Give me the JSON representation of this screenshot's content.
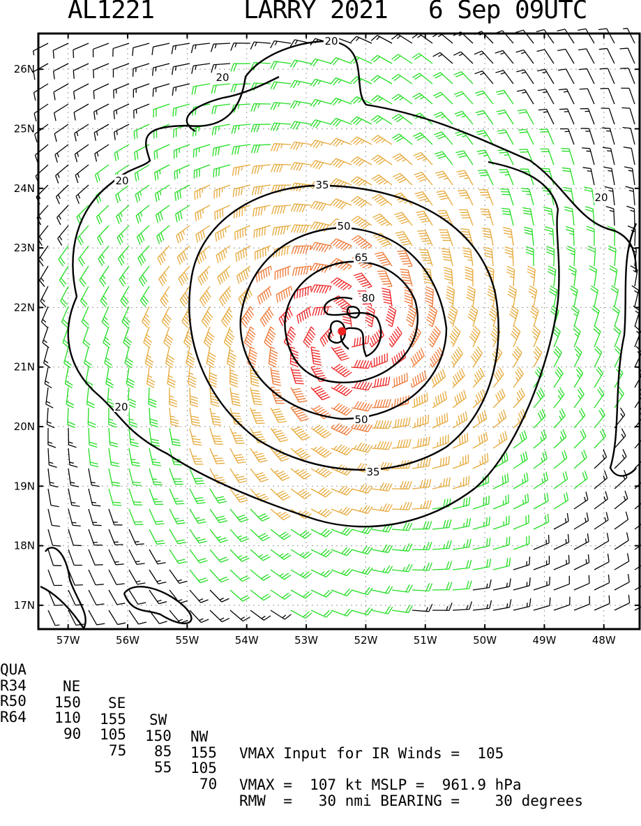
{
  "header": {
    "storm_id": "AL1221",
    "storm_name_year": "LARRY 2021",
    "datetime": "6 Sep 09UTC"
  },
  "map": {
    "lat_labels": [
      "26N",
      "25N",
      "24N",
      "23N",
      "22N",
      "21N",
      "20N",
      "19N",
      "18N",
      "17N"
    ],
    "lon_labels": [
      "57W",
      "56W",
      "55W",
      "54W",
      "53W",
      "52W",
      "51W",
      "50W",
      "49W",
      "48W"
    ],
    "lon_range": [
      -57.5,
      -47.4
    ],
    "lat_range": [
      16.6,
      26.6
    ],
    "center": {
      "lat": 21.6,
      "lon": -52.4
    },
    "contour_labels": [
      "20",
      "20",
      "20",
      "20",
      "20",
      "35",
      "35",
      "50",
      "50",
      "65",
      "80"
    ],
    "colors": {
      "low": "#000000",
      "ts": "#22dd22",
      "strong": "#e6a838",
      "hurricane": "#ee7733",
      "core": "#ee2222",
      "center": "#ee2222"
    }
  },
  "table": {
    "quad_header": [
      "QUA",
      "NE",
      "SE",
      "SW",
      "NW"
    ],
    "rows": [
      {
        "label": "R34",
        "ne": "150",
        "se": "155",
        "sw": "150",
        "nw": "155"
      },
      {
        "label": "R50",
        "ne": "110",
        "se": "105",
        "sw": "85",
        "nw": "105"
      },
      {
        "label": "R64",
        "ne": "90",
        "se": "75",
        "sw": "55",
        "nw": "70"
      }
    ],
    "vmax_input_text": "VMAX Input for IR Winds =  105",
    "vmax_text": "VMAX =  107 kt MSLP =  961.9 hPa",
    "rmw_text": "RMW  =   30 nmi BEARING =    30 degrees"
  }
}
